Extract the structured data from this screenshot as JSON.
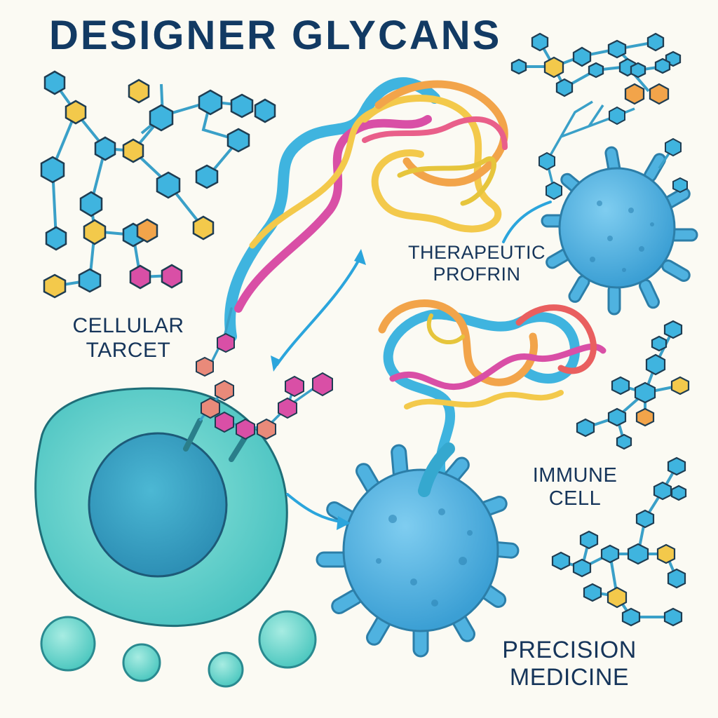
{
  "title": "DESIGNER GLYCANS",
  "labels": {
    "cellular_target": [
      "CELLULAR",
      "TARCET"
    ],
    "therapeutic_protein": [
      "THERAPEUTIC",
      "PROFRIN"
    ],
    "immune_cell": [
      "IMMUNE",
      "CELL"
    ],
    "precision_medicine": [
      "PRECISION",
      "MEDICINE"
    ]
  },
  "colors": {
    "title": "#123a63",
    "label_text": "#16355a",
    "background": "#fbfaf3",
    "glycan_blue": "#3fb4df",
    "glycan_yellow": "#f3c94b",
    "glycan_orange": "#f2a44a",
    "glycan_pink": "#d94fa6",
    "glycan_salmon": "#e98a7a",
    "target_cell": "#5fd3c8",
    "target_nucleus": "#3aa6c8",
    "immune_cell": "#4fb2e0",
    "arrow": "#2ba5dc"
  },
  "icons": [
    "glycan-cluster",
    "therapeutic-protein-ribbon",
    "immune-cell",
    "target-cell",
    "vesicle",
    "arrow"
  ]
}
